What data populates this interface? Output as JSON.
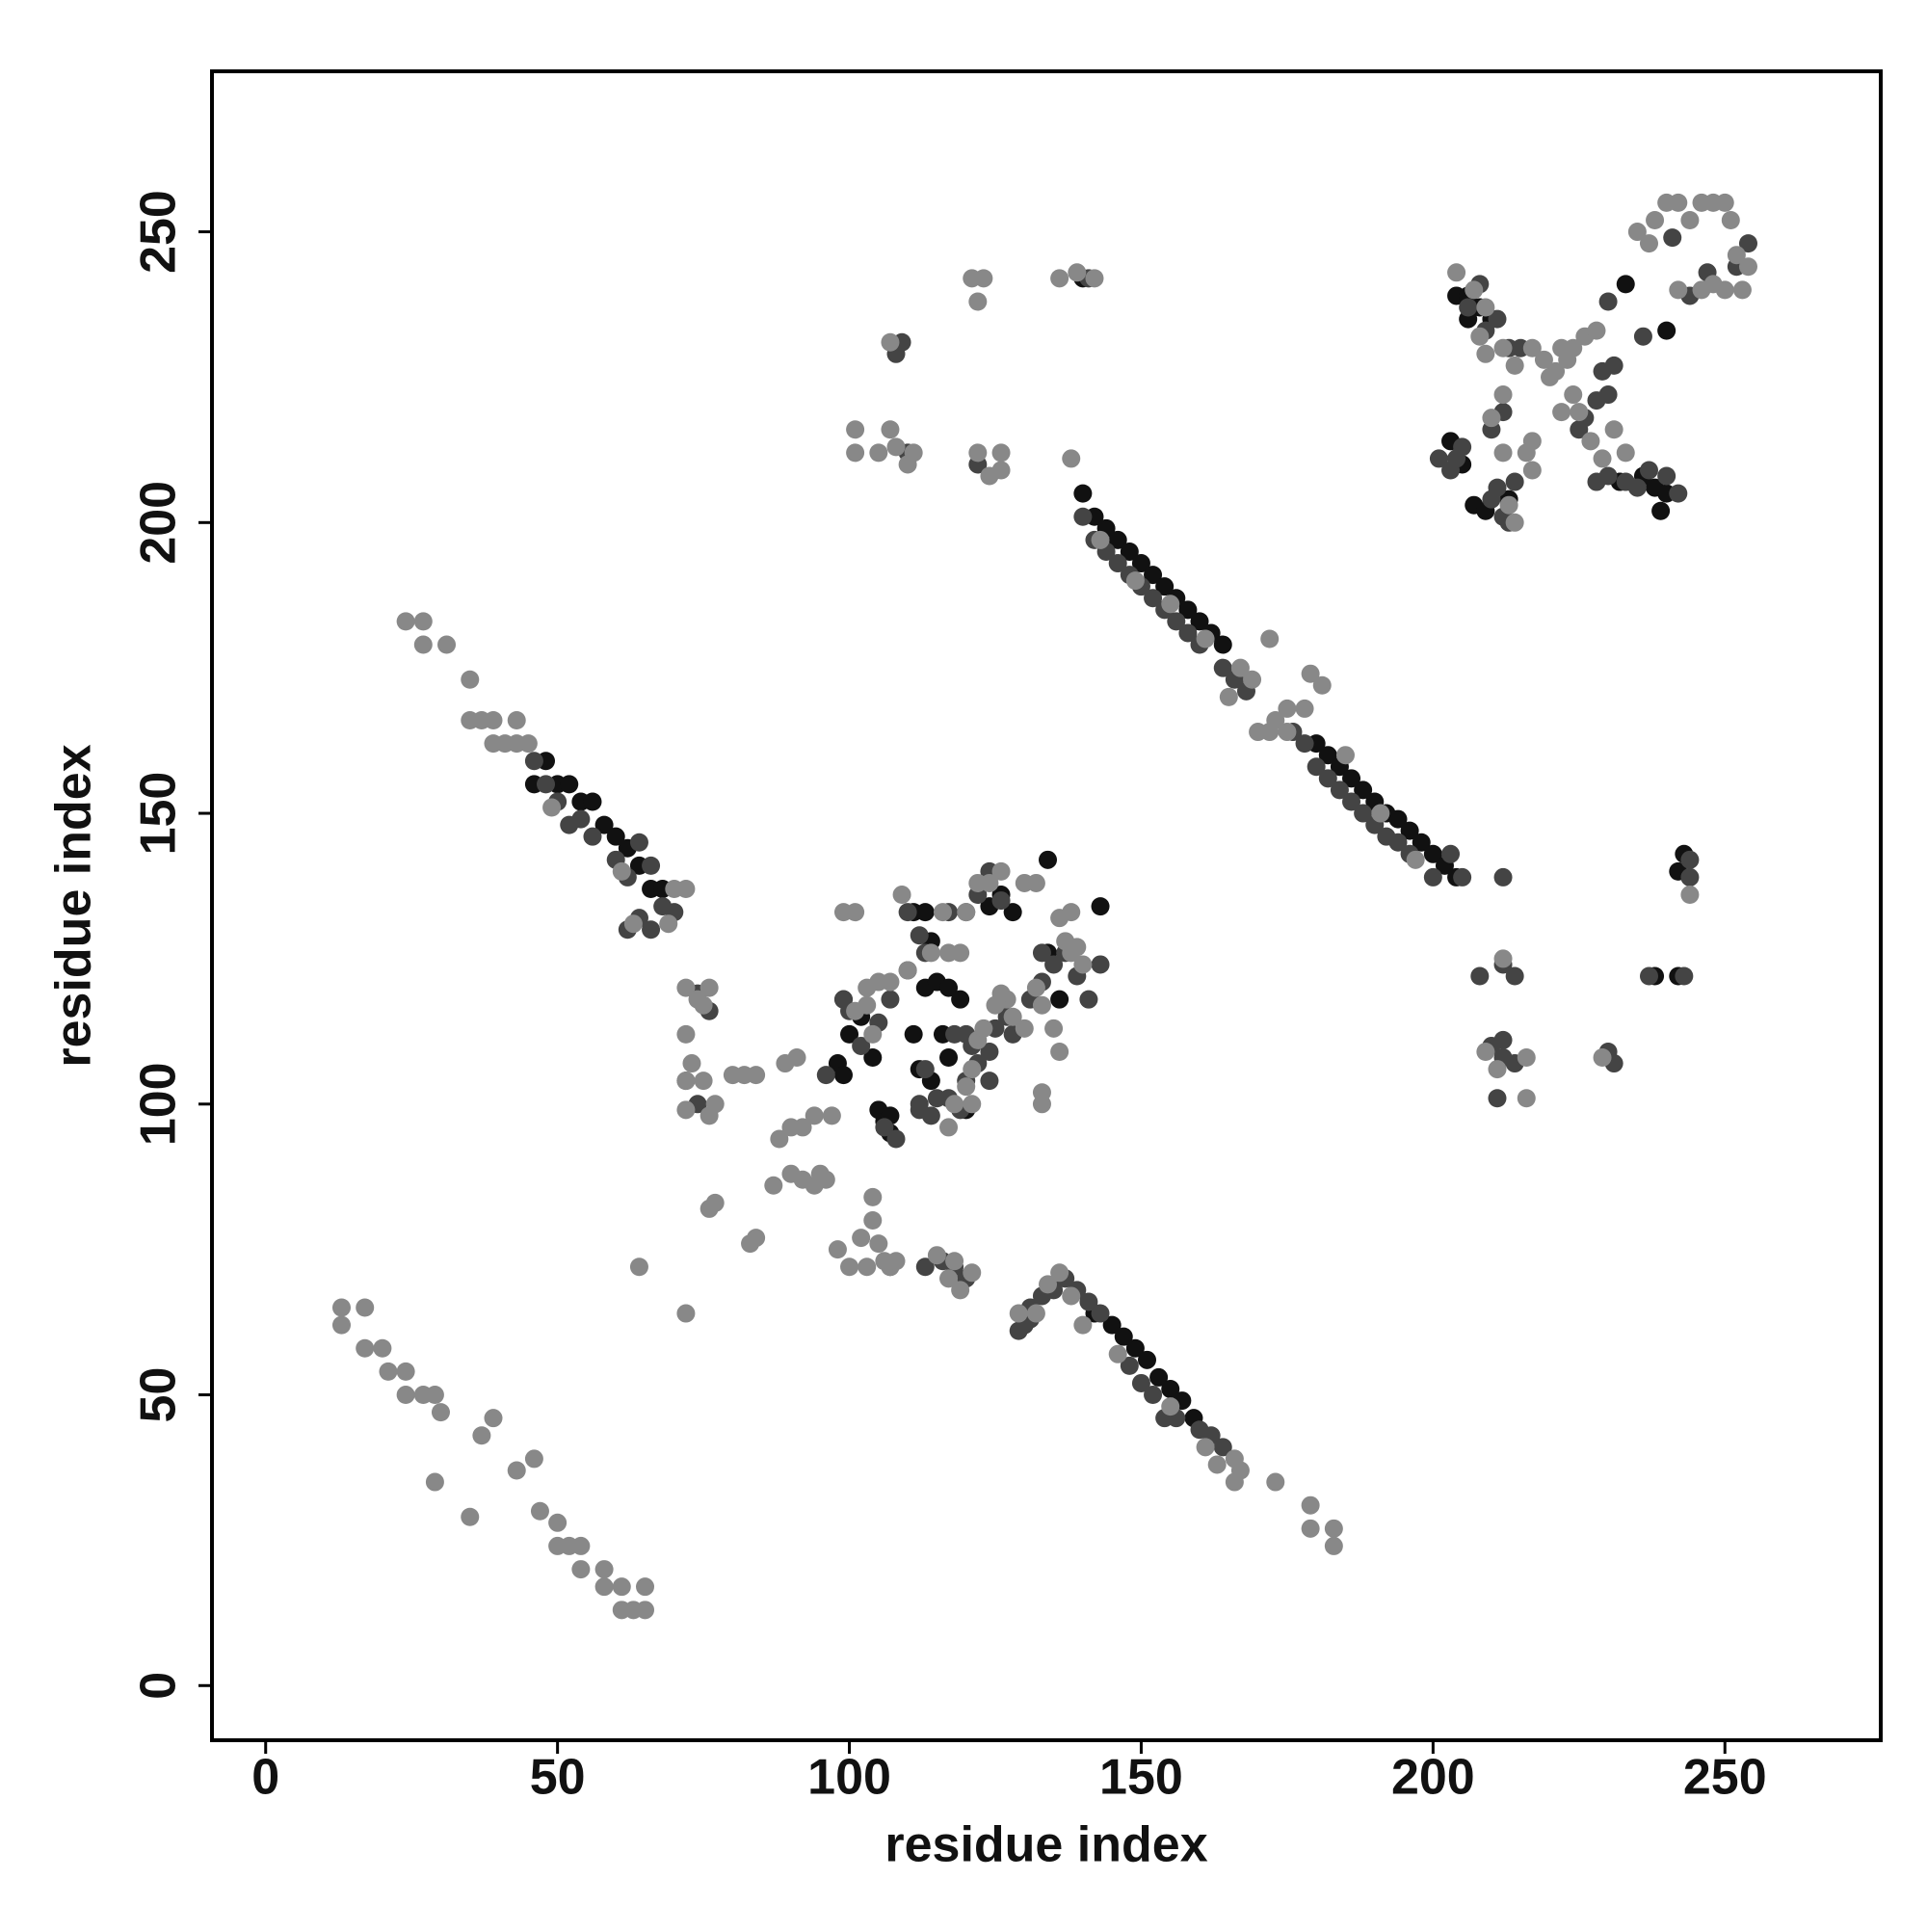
{
  "chart_data": {
    "type": "scatter",
    "xlabel": "residue index",
    "ylabel": "residue index",
    "xlim": [
      -9.2,
      276.7
    ],
    "ylim": [
      -9.4,
      277.6
    ],
    "xticks": [
      0,
      50,
      100,
      150,
      200,
      250
    ],
    "yticks": [
      0,
      50,
      100,
      150,
      200,
      250
    ],
    "series": [
      {
        "color": "#111111",
        "x": [
          142,
          145,
          147,
          149,
          151,
          153,
          155,
          157,
          159,
          46,
          48,
          50,
          52,
          54,
          56,
          58,
          60,
          62,
          64,
          66,
          68,
          140,
          142,
          144,
          146,
          148,
          150,
          152,
          154,
          156,
          158,
          160,
          162,
          164,
          180,
          182,
          184,
          186,
          188,
          190,
          192,
          194,
          196,
          198,
          200,
          202,
          204,
          98,
          99,
          105,
          106,
          107,
          107,
          99,
          100,
          104,
          111,
          112,
          114,
          116,
          117,
          120,
          124,
          126,
          128,
          134,
          134,
          136,
          143,
          113,
          115,
          117,
          119,
          111,
          113,
          114,
          102,
          204,
          206,
          208,
          206,
          210,
          203,
          205,
          207,
          209,
          213,
          236,
          238,
          240,
          239,
          232,
          233,
          240,
          242,
          243,
          242,
          238,
          140
        ],
        "values": [
          64,
          62,
          60,
          58,
          56,
          53,
          51,
          49,
          46,
          155,
          159,
          155,
          155,
          152,
          152,
          148,
          146,
          144,
          141,
          137,
          137,
          205,
          201,
          199,
          197,
          195,
          193,
          191,
          189,
          187,
          185,
          183,
          181,
          179,
          162,
          160,
          158,
          156,
          154,
          152,
          150,
          149,
          147,
          145,
          143,
          141,
          139,
          107,
          105,
          99,
          97,
          95,
          98,
          118,
          112,
          108,
          112,
          106,
          104,
          112,
          108,
          99,
          134,
          136,
          133,
          142,
          126,
          118,
          134,
          120,
          121,
          120,
          118,
          133,
          133,
          128,
          115,
          239,
          239,
          237,
          235,
          235,
          214,
          210,
          203,
          202,
          204,
          208,
          206,
          205,
          202,
          207,
          241,
          233,
          140,
          143,
          122,
          122,
          242
        ]
      },
      {
        "color": "#444444",
        "x": [
          130,
          131,
          133,
          135,
          137,
          139,
          141,
          143,
          148,
          150,
          152,
          154,
          156,
          160,
          162,
          164,
          46,
          48,
          50,
          52,
          54,
          56,
          60,
          62,
          64,
          66,
          68,
          70,
          62,
          64,
          66,
          140,
          142,
          144,
          146,
          148,
          150,
          152,
          154,
          156,
          158,
          160,
          164,
          166,
          168,
          176,
          178,
          180,
          182,
          184,
          186,
          188,
          190,
          192,
          194,
          196,
          200,
          205,
          203,
          212,
          107,
          113,
          116,
          118,
          120,
          114,
          115,
          117,
          112,
          106,
          108,
          112,
          113,
          119,
          120,
          122,
          124,
          125,
          127,
          124,
          118,
          120,
          121,
          128,
          131,
          133,
          135,
          137,
          139,
          141,
          143,
          133,
          122,
          124,
          126,
          117,
          120,
          113,
          110,
          107,
          105,
          102,
          100,
          99,
          110,
          112,
          74,
          76,
          72,
          74,
          131,
          129,
          96,
          201,
          203,
          205,
          204,
          206,
          209,
          211,
          208,
          210,
          212,
          213,
          215,
          210,
          211,
          213,
          212,
          214,
          228,
          229,
          230,
          231,
          226,
          225,
          228,
          230,
          233,
          235,
          237,
          240,
          242,
          236,
          230,
          241,
          244,
          247,
          252,
          254,
          244,
          244,
          210,
          212,
          212,
          214,
          212,
          208,
          211,
          214,
          230,
          231,
          237,
          243,
          110,
          122,
          141,
          108,
          109
        ],
        "values": [
          62,
          65,
          67,
          68,
          70,
          68,
          66,
          64,
          55,
          52,
          50,
          46,
          46,
          44,
          43,
          41,
          159,
          155,
          152,
          148,
          149,
          146,
          142,
          139,
          145,
          141,
          134,
          133,
          130,
          132,
          130,
          201,
          197,
          195,
          193,
          191,
          189,
          187,
          185,
          183,
          181,
          179,
          175,
          173,
          171,
          164,
          162,
          158,
          156,
          154,
          152,
          150,
          148,
          146,
          145,
          143,
          139,
          139,
          143,
          139,
          72,
          72,
          73,
          72,
          70,
          98,
          101,
          101,
          99,
          96,
          94,
          100,
          106,
          99,
          104,
          107,
          109,
          113,
          115,
          104,
          112,
          112,
          110,
          112,
          118,
          121,
          124,
          126,
          122,
          118,
          124,
          126,
          136,
          140,
          135,
          133,
          133,
          126,
          123,
          118,
          114,
          110,
          116,
          118,
          133,
          129,
          119,
          116,
          104,
          100,
          63,
          61,
          105,
          211,
          209,
          213,
          211,
          237,
          233,
          235,
          241,
          216,
          219,
          230,
          230,
          204,
          206,
          200,
          201,
          207,
          221,
          226,
          222,
          227,
          218,
          216,
          207,
          208,
          207,
          206,
          209,
          208,
          205,
          232,
          238,
          249,
          239,
          243,
          244,
          248,
          142,
          139,
          110,
          108,
          111,
          122,
          124,
          122,
          101,
          107,
          109,
          107,
          122,
          122,
          212,
          210,
          242,
          229,
          231
        ]
      },
      {
        "color": "#888888",
        "x": [
          13,
          13,
          17,
          17,
          20,
          21,
          24,
          24,
          27,
          29,
          30,
          29,
          35,
          37,
          39,
          43,
          46,
          47,
          50,
          50,
          52,
          54,
          54,
          58,
          58,
          61,
          61,
          63,
          65,
          65,
          129,
          132,
          134,
          136,
          138,
          140,
          146,
          155,
          161,
          163,
          166,
          166,
          167,
          173,
          179,
          179,
          183,
          183,
          24,
          27,
          27,
          31,
          35,
          35,
          37,
          39,
          41,
          43,
          39,
          43,
          45,
          49,
          61,
          70,
          72,
          63,
          69,
          138,
          143,
          149,
          155,
          161,
          165,
          167,
          169,
          172,
          170,
          173,
          175,
          178,
          179,
          181,
          185,
          191,
          197,
          172,
          175,
          64,
          72,
          76,
          77,
          83,
          84,
          87,
          90,
          92,
          95,
          94,
          96,
          88,
          90,
          92,
          94,
          97,
          89,
          91,
          76,
          77,
          80,
          82,
          84,
          72,
          75,
          72,
          73,
          72,
          74,
          72,
          75,
          76,
          98,
          100,
          103,
          102,
          104,
          104,
          105,
          106,
          107,
          108,
          99,
          101,
          109,
          103,
          105,
          107,
          110,
          101,
          104,
          103,
          114,
          117,
          119,
          116,
          120,
          122,
          124,
          126,
          130,
          132,
          136,
          138,
          137,
          138,
          139,
          140,
          132,
          133,
          135,
          133,
          133,
          136,
          128,
          127,
          130,
          121,
          120,
          121,
          122,
          123,
          125,
          126,
          117,
          118,
          118,
          117,
          119,
          121,
          115,
          204,
          207,
          209,
          208,
          209,
          212,
          214,
          217,
          219,
          221,
          223,
          220,
          222,
          224,
          226,
          228,
          224,
          222,
          225,
          227,
          229,
          231,
          233,
          216,
          217,
          217,
          213,
          214,
          210,
          212,
          212,
          235,
          237,
          238,
          240,
          242,
          244,
          246,
          248,
          250,
          251,
          252,
          254,
          253,
          250,
          248,
          246,
          242,
          244,
          216,
          216,
          229,
          212,
          209,
          211,
          101,
          101,
          105,
          107,
          107,
          108,
          110,
          111,
          121,
          123,
          122,
          122,
          124,
          126,
          126,
          136,
          139,
          142
        ],
        "values": [
          65,
          62,
          65,
          58,
          58,
          54,
          54,
          50,
          50,
          50,
          47,
          35,
          29,
          43,
          46,
          37,
          39,
          30,
          28,
          24,
          24,
          24,
          20,
          20,
          17,
          17,
          13,
          13,
          13,
          17,
          64,
          64,
          69,
          71,
          67,
          62,
          57,
          48,
          41,
          38,
          39,
          35,
          37,
          35,
          31,
          27,
          27,
          24,
          183,
          183,
          179,
          179,
          173,
          166,
          166,
          166,
          162,
          166,
          162,
          162,
          162,
          151,
          140,
          137,
          137,
          131,
          131,
          211,
          197,
          190,
          186,
          180,
          170,
          175,
          173,
          180,
          164,
          166,
          168,
          168,
          174,
          172,
          160,
          150,
          142,
          164,
          164,
          72,
          64,
          82,
          83,
          76,
          77,
          86,
          88,
          87,
          88,
          86,
          87,
          94,
          96,
          96,
          98,
          98,
          107,
          108,
          98,
          100,
          105,
          105,
          105,
          104,
          104,
          99,
          107,
          112,
          118,
          120,
          117,
          120,
          75,
          72,
          72,
          77,
          80,
          84,
          76,
          73,
          72,
          73,
          133,
          133,
          136,
          120,
          121,
          121,
          123,
          116,
          112,
          117,
          126,
          126,
          126,
          133,
          133,
          138,
          138,
          140,
          138,
          138,
          132,
          133,
          128,
          126,
          127,
          124,
          120,
          117,
          113,
          102,
          100,
          109,
          115,
          118,
          113,
          100,
          103,
          106,
          111,
          113,
          117,
          119,
          96,
          100,
          73,
          70,
          68,
          71,
          74,
          243,
          240,
          237,
          232,
          229,
          230,
          227,
          230,
          228,
          226,
          228,
          225,
          230,
          230,
          232,
          233,
          222,
          219,
          219,
          214,
          211,
          216,
          212,
          212,
          214,
          209,
          203,
          200,
          218,
          212,
          222,
          250,
          248,
          252,
          255,
          255,
          252,
          255,
          255,
          255,
          252,
          246,
          244,
          240,
          240,
          241,
          240,
          240,
          136,
          101,
          108,
          108,
          125,
          109,
          106,
          216,
          212,
          212,
          231,
          216,
          213,
          210,
          212,
          242,
          242,
          238,
          212,
          208,
          212,
          209,
          242,
          243,
          242
        ]
      }
    ]
  }
}
